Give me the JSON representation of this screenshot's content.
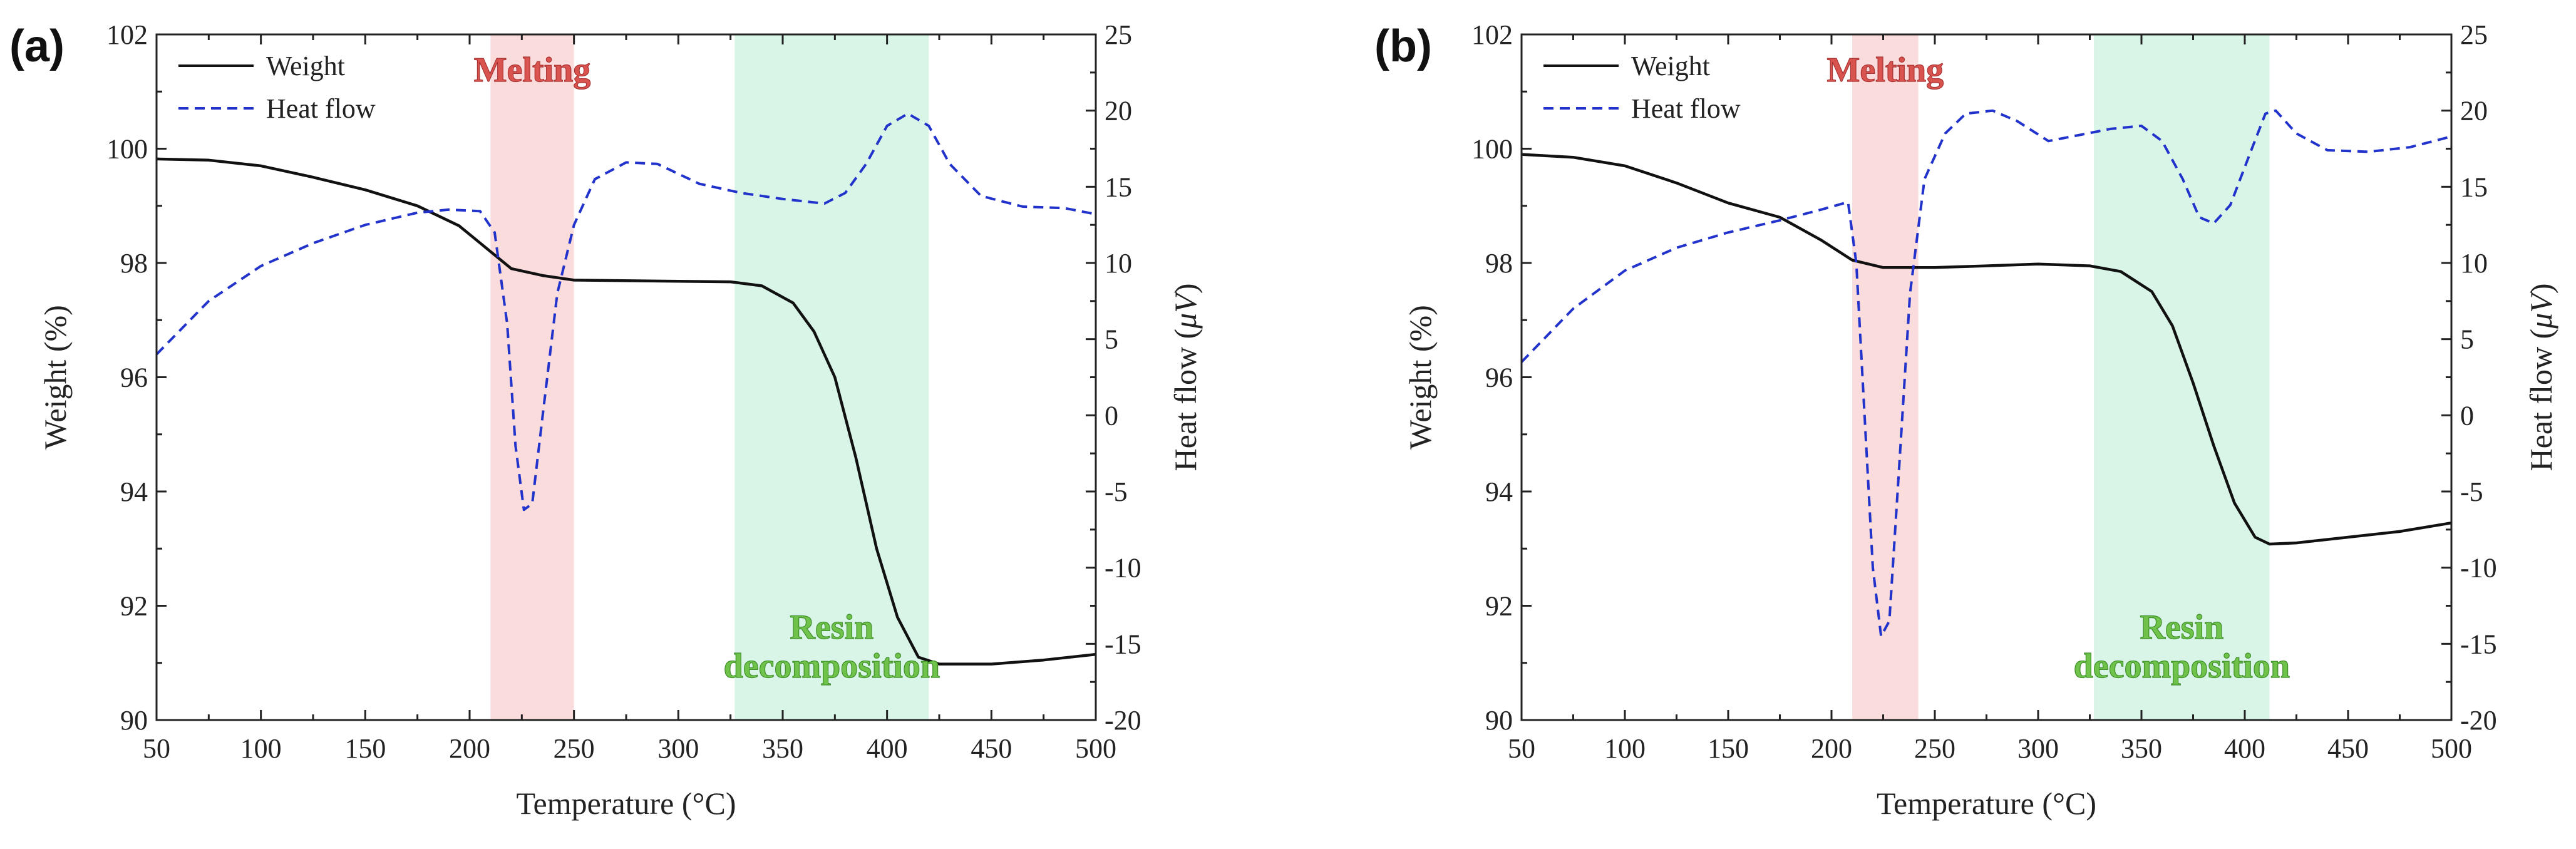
{
  "chart_data": [
    {
      "type": "line",
      "panel_label": "(a)",
      "xlabel": "Temperature (°C)",
      "ylabel_left": "Weight (%)",
      "ylabel_right_prefix": "Heat flow (",
      "ylabel_right_unit": "μV",
      "ylabel_right_suffix": ")",
      "xlim": [
        50,
        500
      ],
      "ylim_left": [
        90,
        102
      ],
      "ylim_right": [
        -20,
        25
      ],
      "x_ticks": [
        50,
        100,
        150,
        200,
        250,
        300,
        350,
        400,
        450,
        500
      ],
      "y_left_ticks": [
        90,
        92,
        94,
        96,
        98,
        100,
        102
      ],
      "y_right_ticks": [
        -20,
        -15,
        -10,
        -5,
        0,
        5,
        10,
        15,
        20,
        25
      ],
      "legend": {
        "position": "top-left",
        "entries": [
          "Weight",
          "Heat flow"
        ]
      },
      "regions": [
        {
          "label": "Melting",
          "x_range": [
            210,
            250
          ],
          "color": "#fadcdc",
          "label_color": "#d9534f"
        },
        {
          "label_lines": [
            "Resin",
            "decomposition"
          ],
          "x_range": [
            327,
            420
          ],
          "color": "#d8f5e8",
          "label_color": "#6fc24a"
        }
      ],
      "series": [
        {
          "name": "Weight",
          "axis": "left",
          "style": "solid",
          "color": "#111111",
          "points": [
            [
              50,
              99.82
            ],
            [
              75,
              99.8
            ],
            [
              100,
              99.7
            ],
            [
              125,
              99.5
            ],
            [
              150,
              99.28
            ],
            [
              175,
              99.0
            ],
            [
              195,
              98.65
            ],
            [
              210,
              98.2
            ],
            [
              220,
              97.9
            ],
            [
              235,
              97.78
            ],
            [
              250,
              97.7
            ],
            [
              300,
              97.68
            ],
            [
              325,
              97.67
            ],
            [
              340,
              97.6
            ],
            [
              355,
              97.3
            ],
            [
              365,
              96.8
            ],
            [
              375,
              96.0
            ],
            [
              385,
              94.6
            ],
            [
              395,
              93.0
            ],
            [
              405,
              91.8
            ],
            [
              415,
              91.1
            ],
            [
              425,
              90.98
            ],
            [
              450,
              90.98
            ],
            [
              475,
              91.05
            ],
            [
              500,
              91.15
            ]
          ]
        },
        {
          "name": "Heat flow",
          "axis": "right",
          "style": "dashed",
          "color": "#2233cc",
          "points": [
            [
              50,
              4.0
            ],
            [
              75,
              7.5
            ],
            [
              100,
              9.8
            ],
            [
              125,
              11.3
            ],
            [
              150,
              12.5
            ],
            [
              175,
              13.3
            ],
            [
              190,
              13.5
            ],
            [
              205,
              13.4
            ],
            [
              212,
              12.0
            ],
            [
              218,
              6.0
            ],
            [
              222,
              -2.0
            ],
            [
              226,
              -6.2
            ],
            [
              230,
              -5.8
            ],
            [
              235,
              0.0
            ],
            [
              242,
              8.0
            ],
            [
              250,
              12.5
            ],
            [
              260,
              15.5
            ],
            [
              275,
              16.6
            ],
            [
              290,
              16.5
            ],
            [
              310,
              15.2
            ],
            [
              330,
              14.6
            ],
            [
              350,
              14.2
            ],
            [
              370,
              13.9
            ],
            [
              380,
              14.6
            ],
            [
              390,
              16.5
            ],
            [
              400,
              19.0
            ],
            [
              410,
              19.8
            ],
            [
              420,
              19.0
            ],
            [
              430,
              16.5
            ],
            [
              445,
              14.4
            ],
            [
              465,
              13.7
            ],
            [
              485,
              13.6
            ],
            [
              500,
              13.2
            ]
          ]
        }
      ]
    },
    {
      "type": "line",
      "panel_label": "(b)",
      "xlabel": "Temperature (°C)",
      "ylabel_left": "Weight (%)",
      "ylabel_right_prefix": "Heat flow (",
      "ylabel_right_unit": "μV",
      "ylabel_right_suffix": ")",
      "xlim": [
        50,
        500
      ],
      "ylim_left": [
        90,
        102
      ],
      "ylim_right": [
        -20,
        25
      ],
      "x_ticks": [
        50,
        100,
        150,
        200,
        250,
        300,
        350,
        400,
        450,
        500
      ],
      "y_left_ticks": [
        90,
        92,
        94,
        96,
        98,
        100,
        102
      ],
      "y_right_ticks": [
        -20,
        -15,
        -10,
        -5,
        0,
        5,
        10,
        15,
        20,
        25
      ],
      "legend": {
        "position": "top-left",
        "entries": [
          "Weight",
          "Heat flow"
        ]
      },
      "regions": [
        {
          "label": "Melting",
          "x_range": [
            210,
            242
          ],
          "color": "#fadcdc",
          "label_color": "#d9534f"
        },
        {
          "label_lines": [
            "Resin",
            "decomposition"
          ],
          "x_range": [
            327,
            412
          ],
          "color": "#d8f5e8",
          "label_color": "#6fc24a"
        }
      ],
      "series": [
        {
          "name": "Weight",
          "axis": "left",
          "style": "solid",
          "color": "#111111",
          "points": [
            [
              50,
              99.9
            ],
            [
              75,
              99.85
            ],
            [
              100,
              99.7
            ],
            [
              125,
              99.4
            ],
            [
              150,
              99.05
            ],
            [
              175,
              98.8
            ],
            [
              195,
              98.4
            ],
            [
              210,
              98.05
            ],
            [
              225,
              97.92
            ],
            [
              250,
              97.92
            ],
            [
              275,
              97.95
            ],
            [
              300,
              97.98
            ],
            [
              325,
              97.95
            ],
            [
              340,
              97.85
            ],
            [
              355,
              97.5
            ],
            [
              365,
              96.9
            ],
            [
              375,
              95.9
            ],
            [
              385,
              94.8
            ],
            [
              395,
              93.8
            ],
            [
              405,
              93.2
            ],
            [
              412,
              93.08
            ],
            [
              425,
              93.1
            ],
            [
              450,
              93.2
            ],
            [
              475,
              93.3
            ],
            [
              500,
              93.45
            ]
          ]
        },
        {
          "name": "Heat flow",
          "axis": "right",
          "style": "dashed",
          "color": "#2233cc",
          "points": [
            [
              50,
              3.5
            ],
            [
              75,
              7.0
            ],
            [
              100,
              9.5
            ],
            [
              125,
              11.0
            ],
            [
              150,
              12.0
            ],
            [
              175,
              12.8
            ],
            [
              195,
              13.5
            ],
            [
              208,
              14.0
            ],
            [
              212,
              10.0
            ],
            [
              216,
              0.0
            ],
            [
              220,
              -10.0
            ],
            [
              224,
              -14.5
            ],
            [
              228,
              -13.5
            ],
            [
              232,
              -5.0
            ],
            [
              238,
              8.0
            ],
            [
              245,
              15.5
            ],
            [
              255,
              18.5
            ],
            [
              265,
              19.8
            ],
            [
              278,
              20.0
            ],
            [
              290,
              19.3
            ],
            [
              305,
              18.0
            ],
            [
              320,
              18.4
            ],
            [
              335,
              18.8
            ],
            [
              350,
              19.0
            ],
            [
              360,
              18.0
            ],
            [
              370,
              15.5
            ],
            [
              378,
              13.0
            ],
            [
              385,
              12.6
            ],
            [
              393,
              13.8
            ],
            [
              402,
              17.0
            ],
            [
              410,
              19.8
            ],
            [
              415,
              20.0
            ],
            [
              425,
              18.5
            ],
            [
              440,
              17.4
            ],
            [
              460,
              17.3
            ],
            [
              480,
              17.6
            ],
            [
              500,
              18.3
            ]
          ]
        }
      ]
    }
  ]
}
